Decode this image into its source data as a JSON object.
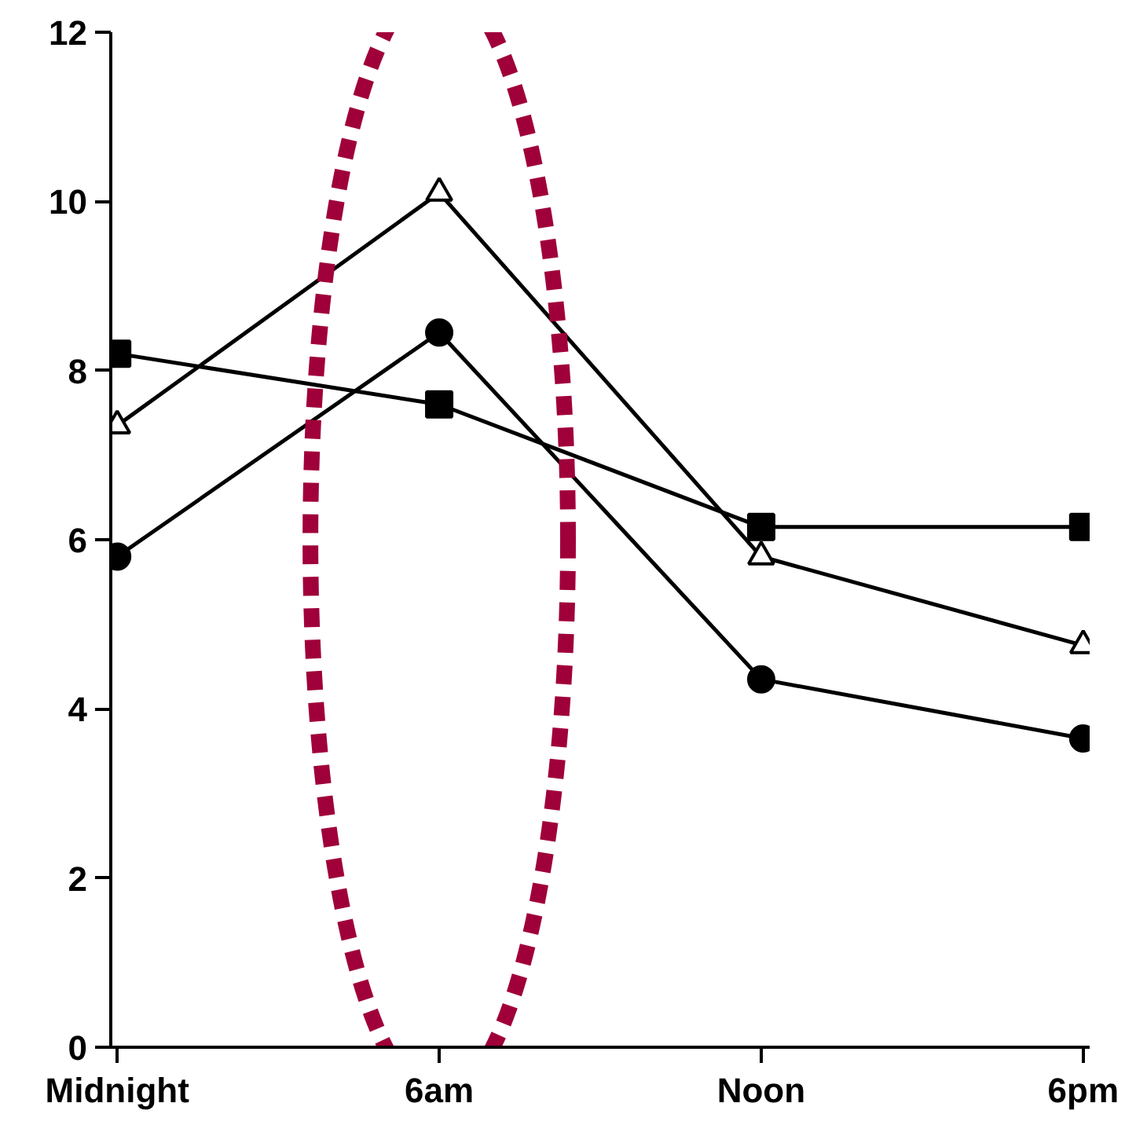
{
  "chart_data": {
    "type": "line",
    "categories": [
      "Midnight",
      "6am",
      "Noon",
      "6pm"
    ],
    "series": [
      {
        "color": "#000000",
        "marker": "square",
        "values": [
          8.2,
          7.6,
          6.15,
          6.15
        ]
      },
      {
        "color": "#000000",
        "marker": "triangle",
        "values": [
          7.35,
          10.1,
          5.8,
          4.75
        ]
      },
      {
        "color": "#000000",
        "marker": "circle",
        "values": [
          5.8,
          8.45,
          4.35,
          3.65
        ]
      }
    ],
    "ylim": [
      0,
      12
    ],
    "yticks": [
      0,
      2,
      4,
      6,
      8,
      10,
      12
    ],
    "grid": false,
    "line_style": "solid"
  }
}
